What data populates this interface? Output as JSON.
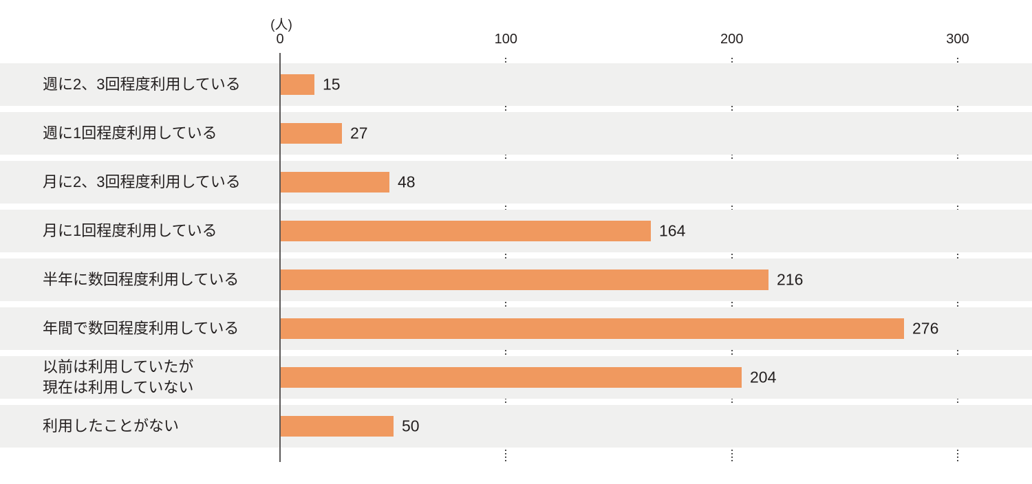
{
  "chart_data": {
    "type": "bar",
    "orientation": "horizontal",
    "title": "",
    "unit_label": "(人)",
    "xlabel": "",
    "ylabel": "",
    "categories": [
      "週に2、3回程度利用している",
      "週に1回程度利用している",
      "月に2、3回程度利用している",
      "月に1回程度利用している",
      "半年に数回程度利用している",
      "年間で数回程度利用している",
      "以前は利用していたが\n現在は利用していない",
      "利用したことがない"
    ],
    "values": [
      15,
      27,
      48,
      164,
      216,
      276,
      204,
      50
    ],
    "x_ticks": [
      0,
      100,
      200,
      300
    ],
    "xlim": [
      0,
      333
    ],
    "grid": "vertical dotted lines at 100, 200, 300; solid axis at 0",
    "legend_position": "none",
    "colors": {
      "bar": "#F0995F",
      "row_band": "#F0F0EF",
      "axis_line": "#595757",
      "gridline": "#4B4B4B",
      "text": "#231F1F",
      "background": "#FFFFFF"
    }
  }
}
